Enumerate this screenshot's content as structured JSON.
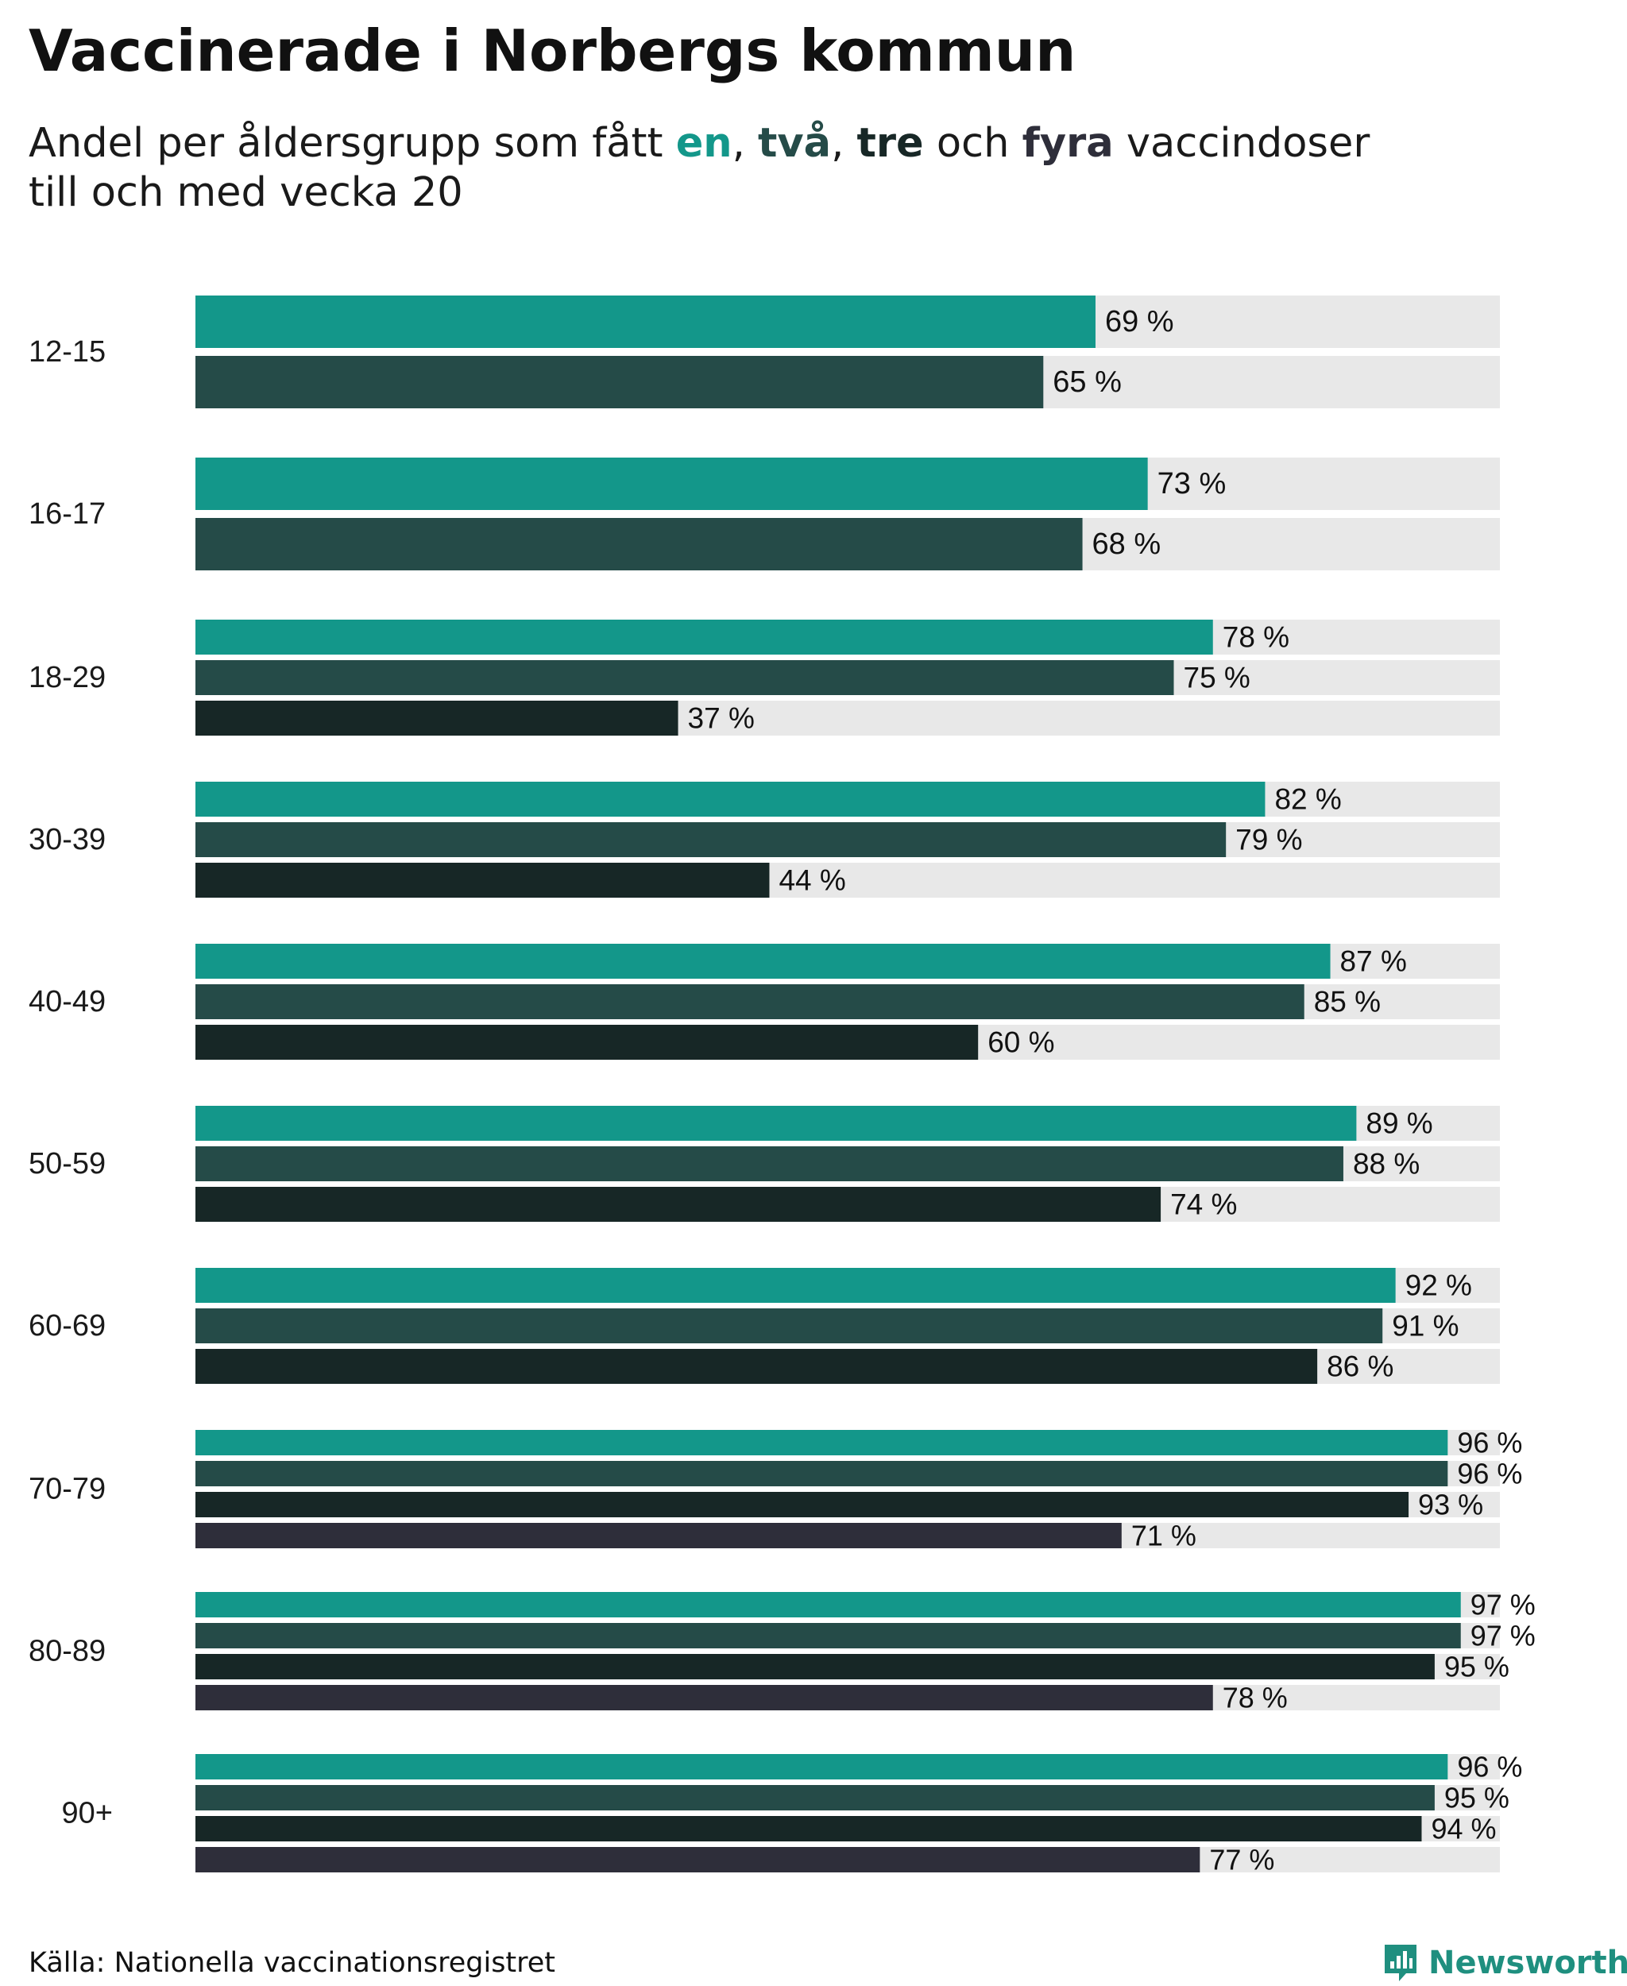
{
  "title": "Vaccinerade i Norbergs kommun",
  "subtitle": {
    "prefix": "Andel per åldersgrupp som fått ",
    "dose1": "en",
    "sep1": ", ",
    "dose2": "två",
    "sep2": ", ",
    "dose3": "tre",
    "sep3": " och ",
    "dose4": "fyra",
    "suffix": " vaccindoser",
    "line2": "till och med vecka 20"
  },
  "colors": {
    "dose1": "#13978a",
    "dose2": "#254b48",
    "dose3": "#172726",
    "dose4": "#2e2e3a",
    "track": "#e8e8e8",
    "brand": "#1f8f7f"
  },
  "source": "Källa: Nationella vaccinationsregistret",
  "brand": "Newsworthy",
  "chart_data": {
    "type": "bar",
    "orientation": "horizontal",
    "value_unit": "%",
    "xlim": [
      0,
      100
    ],
    "categories": [
      "12-15",
      "16-17",
      "18-29",
      "30-39",
      "40-49",
      "50-59",
      "60-69",
      "70-79",
      "80-89",
      "90+"
    ],
    "series": [
      {
        "name": "en",
        "values": [
          69,
          73,
          78,
          82,
          87,
          89,
          92,
          96,
          97,
          96
        ]
      },
      {
        "name": "två",
        "values": [
          65,
          68,
          75,
          79,
          85,
          88,
          91,
          96,
          97,
          95
        ]
      },
      {
        "name": "tre",
        "values": [
          null,
          null,
          37,
          44,
          60,
          74,
          86,
          93,
          95,
          94
        ]
      },
      {
        "name": "fyra",
        "values": [
          null,
          null,
          null,
          null,
          null,
          null,
          null,
          71,
          78,
          77
        ]
      }
    ]
  }
}
